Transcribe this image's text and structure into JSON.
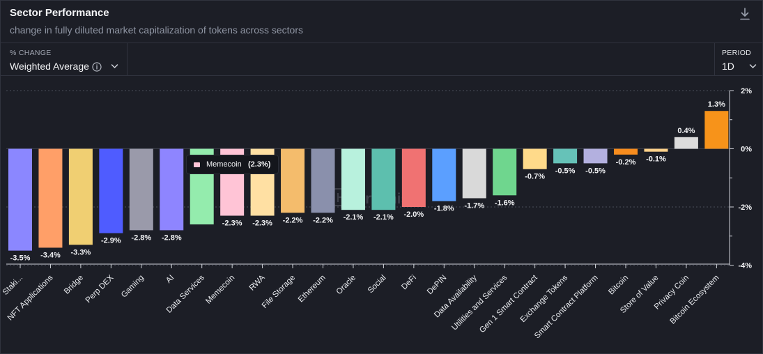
{
  "header": {
    "title": "Sector Performance",
    "subtitle": "change in fully diluted market capitalization of tokens across sectors"
  },
  "controls": {
    "metric_label": "% CHANGE",
    "metric_value": "Weighted Average",
    "period_label": "PERIOD",
    "period_value": "1D"
  },
  "tooltip": {
    "name": "Memecoin",
    "value": "(2.3%)",
    "color": "#ffc4d6"
  },
  "watermark": "Artemis",
  "chart_data": {
    "type": "bar",
    "title": "Sector Performance",
    "xlabel": "",
    "ylabel": "% change",
    "ylim": [
      -4,
      2
    ],
    "yticks": [
      2,
      0,
      -2,
      -4
    ],
    "ytick_labels": [
      "2%",
      "0%",
      "-2%",
      "-4%"
    ],
    "grid": true,
    "categories": [
      "Staki...",
      "NFT Applications",
      "Bridge",
      "Perp DEX",
      "Gaming",
      "AI",
      "Data Services",
      "Memecoin",
      "RWA",
      "File Storage",
      "Ethereum",
      "Oracle",
      "Social",
      "DeFi",
      "DePIN",
      "Data Availability",
      "Utilities and Services",
      "Gen 1 Smart Contract",
      "Exchange Tokens",
      "Smart Contract Platform",
      "Bitcoin",
      "Store of Value",
      "Privacy Coin",
      "Bitcoin Ecosystem"
    ],
    "values": [
      -3.5,
      -3.4,
      -3.3,
      -2.9,
      -2.8,
      -2.8,
      -2.6,
      -2.3,
      -2.3,
      -2.2,
      -2.2,
      -2.1,
      -2.1,
      -2.0,
      -1.8,
      -1.7,
      -1.6,
      -0.7,
      -0.5,
      -0.5,
      -0.2,
      -0.1,
      0.4,
      1.3
    ],
    "value_labels": [
      "-3.5%",
      "-3.4%",
      "-3.3%",
      "-2.9%",
      "-2.8%",
      "-2.8%",
      "",
      "-2.3%",
      "-2.3%",
      "-2.2%",
      "-2.2%",
      "-2.1%",
      "-2.1%",
      "-2.0%",
      "-1.8%",
      "-1.7%",
      "-1.6%",
      "-0.7%",
      "-0.5%",
      "-0.5%",
      "-0.2%",
      "-0.1%",
      "0.4%",
      "1.3%"
    ],
    "colors": [
      "#8b87ff",
      "#ff9f68",
      "#f0cf72",
      "#4f5cff",
      "#9a9aaa",
      "#8e85ff",
      "#94ecad",
      "#ffc4d6",
      "#ffe0a3",
      "#f4bc6c",
      "#8a90ac",
      "#b8f1dd",
      "#5dbfae",
      "#f07272",
      "#5b9fff",
      "#d9d9d9",
      "#6fd68e",
      "#ffda8a",
      "#66c2b8",
      "#b3b0df",
      "#f78c1e",
      "#ffd28a",
      "#dcdcdc",
      "#f7931a"
    ]
  }
}
